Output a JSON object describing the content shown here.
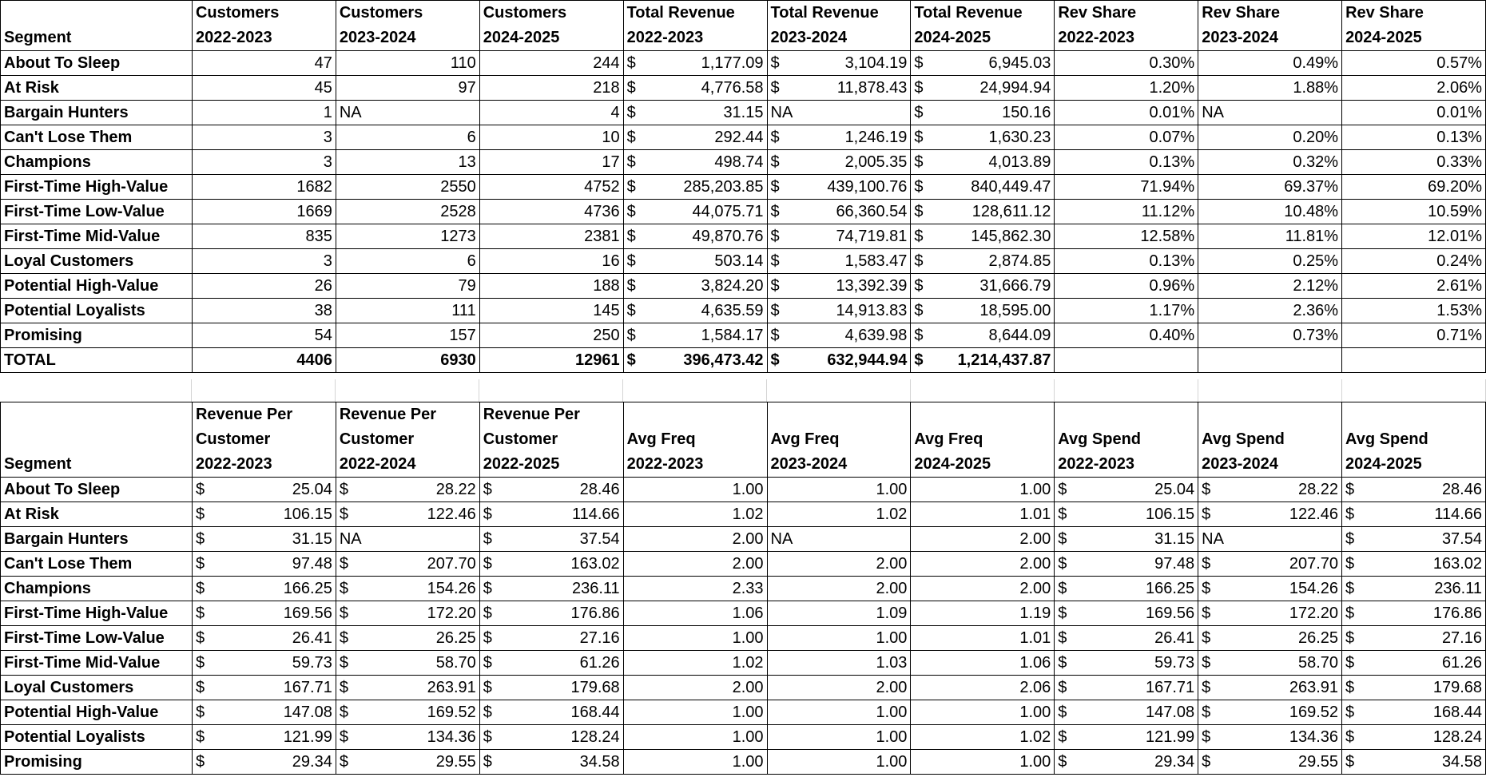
{
  "table1": {
    "headers": [
      {
        "l1": "",
        "l2": "Segment"
      },
      {
        "l1": "Customers",
        "l2": "2022-2023"
      },
      {
        "l1": "Customers",
        "l2": "2023-2024"
      },
      {
        "l1": "Customers",
        "l2": "2024-2025"
      },
      {
        "l1": "Total Revenue",
        "l2": "2022-2023"
      },
      {
        "l1": "Total Revenue",
        "l2": "2023-2024"
      },
      {
        "l1": "Total Revenue",
        "l2": "2024-2025"
      },
      {
        "l1": "Rev Share",
        "l2": "2022-2023"
      },
      {
        "l1": "Rev Share",
        "l2": "2023-2024"
      },
      {
        "l1": "Rev Share",
        "l2": "2024-2025"
      }
    ],
    "rows": [
      [
        "About To Sleep",
        "47",
        "110",
        "244",
        "1,177.09",
        "3,104.19",
        "6,945.03",
        "0.30%",
        "0.49%",
        "0.57%"
      ],
      [
        "At Risk",
        "45",
        "97",
        "218",
        "4,776.58",
        "11,878.43",
        "24,994.94",
        "1.20%",
        "1.88%",
        "2.06%"
      ],
      [
        "Bargain Hunters",
        "1",
        "NA",
        "4",
        "31.15",
        "NA",
        "150.16",
        "0.01%",
        "NA",
        "0.01%"
      ],
      [
        "Can't Lose Them",
        "3",
        "6",
        "10",
        "292.44",
        "1,246.19",
        "1,630.23",
        "0.07%",
        "0.20%",
        "0.13%"
      ],
      [
        "Champions",
        "3",
        "13",
        "17",
        "498.74",
        "2,005.35",
        "4,013.89",
        "0.13%",
        "0.32%",
        "0.33%"
      ],
      [
        "First-Time High-Value",
        "1682",
        "2550",
        "4752",
        "285,203.85",
        "439,100.76",
        "840,449.47",
        "71.94%",
        "69.37%",
        "69.20%"
      ],
      [
        "First-Time Low-Value",
        "1669",
        "2528",
        "4736",
        "44,075.71",
        "66,360.54",
        "128,611.12",
        "11.12%",
        "10.48%",
        "10.59%"
      ],
      [
        "First-Time Mid-Value",
        "835",
        "1273",
        "2381",
        "49,870.76",
        "74,719.81",
        "145,862.30",
        "12.58%",
        "11.81%",
        "12.01%"
      ],
      [
        "Loyal Customers",
        "3",
        "6",
        "16",
        "503.14",
        "1,583.47",
        "2,874.85",
        "0.13%",
        "0.25%",
        "0.24%"
      ],
      [
        "Potential High-Value",
        "26",
        "79",
        "188",
        "3,824.20",
        "13,392.39",
        "31,666.79",
        "0.96%",
        "2.12%",
        "2.61%"
      ],
      [
        "Potential Loyalists",
        "38",
        "111",
        "145",
        "4,635.59",
        "14,913.83",
        "18,595.00",
        "1.17%",
        "2.36%",
        "1.53%"
      ],
      [
        "Promising",
        "54",
        "157",
        "250",
        "1,584.17",
        "4,639.98",
        "8,644.09",
        "0.40%",
        "0.73%",
        "0.71%"
      ]
    ],
    "total": [
      "TOTAL",
      "4406",
      "6930",
      "12961",
      "396,473.42",
      "632,944.94",
      "1,214,437.87",
      "",
      "",
      ""
    ]
  },
  "table2": {
    "headers": [
      {
        "l0": "",
        "l1": "",
        "l2": "Segment"
      },
      {
        "l0": "Revenue Per",
        "l1": "Customer",
        "l2": "2022-2023"
      },
      {
        "l0": "Revenue Per",
        "l1": "Customer",
        "l2": "2022-2024"
      },
      {
        "l0": "Revenue Per",
        "l1": "Customer",
        "l2": "2022-2025"
      },
      {
        "l0": "",
        "l1": "Avg Freq",
        "l2": "2022-2023"
      },
      {
        "l0": "",
        "l1": "Avg Freq",
        "l2": "2023-2024"
      },
      {
        "l0": "",
        "l1": "Avg Freq",
        "l2": "2024-2025"
      },
      {
        "l0": "",
        "l1": "Avg Spend",
        "l2": "2022-2023"
      },
      {
        "l0": "",
        "l1": "Avg Spend",
        "l2": "2023-2024"
      },
      {
        "l0": "",
        "l1": "Avg Spend",
        "l2": "2024-2025"
      }
    ],
    "rows": [
      [
        "About To Sleep",
        "25.04",
        "28.22",
        "28.46",
        "1.00",
        "1.00",
        "1.00",
        "25.04",
        "28.22",
        "28.46"
      ],
      [
        "At Risk",
        "106.15",
        "122.46",
        "114.66",
        "1.02",
        "1.02",
        "1.01",
        "106.15",
        "122.46",
        "114.66"
      ],
      [
        "Bargain Hunters",
        "31.15",
        "NA",
        "37.54",
        "2.00",
        "NA",
        "2.00",
        "31.15",
        "NA",
        "37.54"
      ],
      [
        "Can't Lose Them",
        "97.48",
        "207.70",
        "163.02",
        "2.00",
        "2.00",
        "2.00",
        "97.48",
        "207.70",
        "163.02"
      ],
      [
        "Champions",
        "166.25",
        "154.26",
        "236.11",
        "2.33",
        "2.00",
        "2.00",
        "166.25",
        "154.26",
        "236.11"
      ],
      [
        "First-Time High-Value",
        "169.56",
        "172.20",
        "176.86",
        "1.06",
        "1.09",
        "1.19",
        "169.56",
        "172.20",
        "176.86"
      ],
      [
        "First-Time Low-Value",
        "26.41",
        "26.25",
        "27.16",
        "1.00",
        "1.00",
        "1.01",
        "26.41",
        "26.25",
        "27.16"
      ],
      [
        "First-Time Mid-Value",
        "59.73",
        "58.70",
        "61.26",
        "1.02",
        "1.03",
        "1.06",
        "59.73",
        "58.70",
        "61.26"
      ],
      [
        "Loyal Customers",
        "167.71",
        "263.91",
        "179.68",
        "2.00",
        "2.00",
        "2.06",
        "167.71",
        "263.91",
        "179.68"
      ],
      [
        "Potential High-Value",
        "147.08",
        "169.52",
        "168.44",
        "1.00",
        "1.00",
        "1.00",
        "147.08",
        "169.52",
        "168.44"
      ],
      [
        "Potential Loyalists",
        "121.99",
        "134.36",
        "128.24",
        "1.00",
        "1.00",
        "1.02",
        "121.99",
        "134.36",
        "128.24"
      ],
      [
        "Promising",
        "29.34",
        "29.55",
        "34.58",
        "1.00",
        "1.00",
        "1.00",
        "29.34",
        "29.55",
        "34.58"
      ]
    ]
  },
  "format": {
    "currency_symbol": "$",
    "currency_columns_table1": [
      4,
      5,
      6
    ],
    "currency_columns_table2": [
      1,
      2,
      3,
      7,
      8,
      9
    ]
  }
}
